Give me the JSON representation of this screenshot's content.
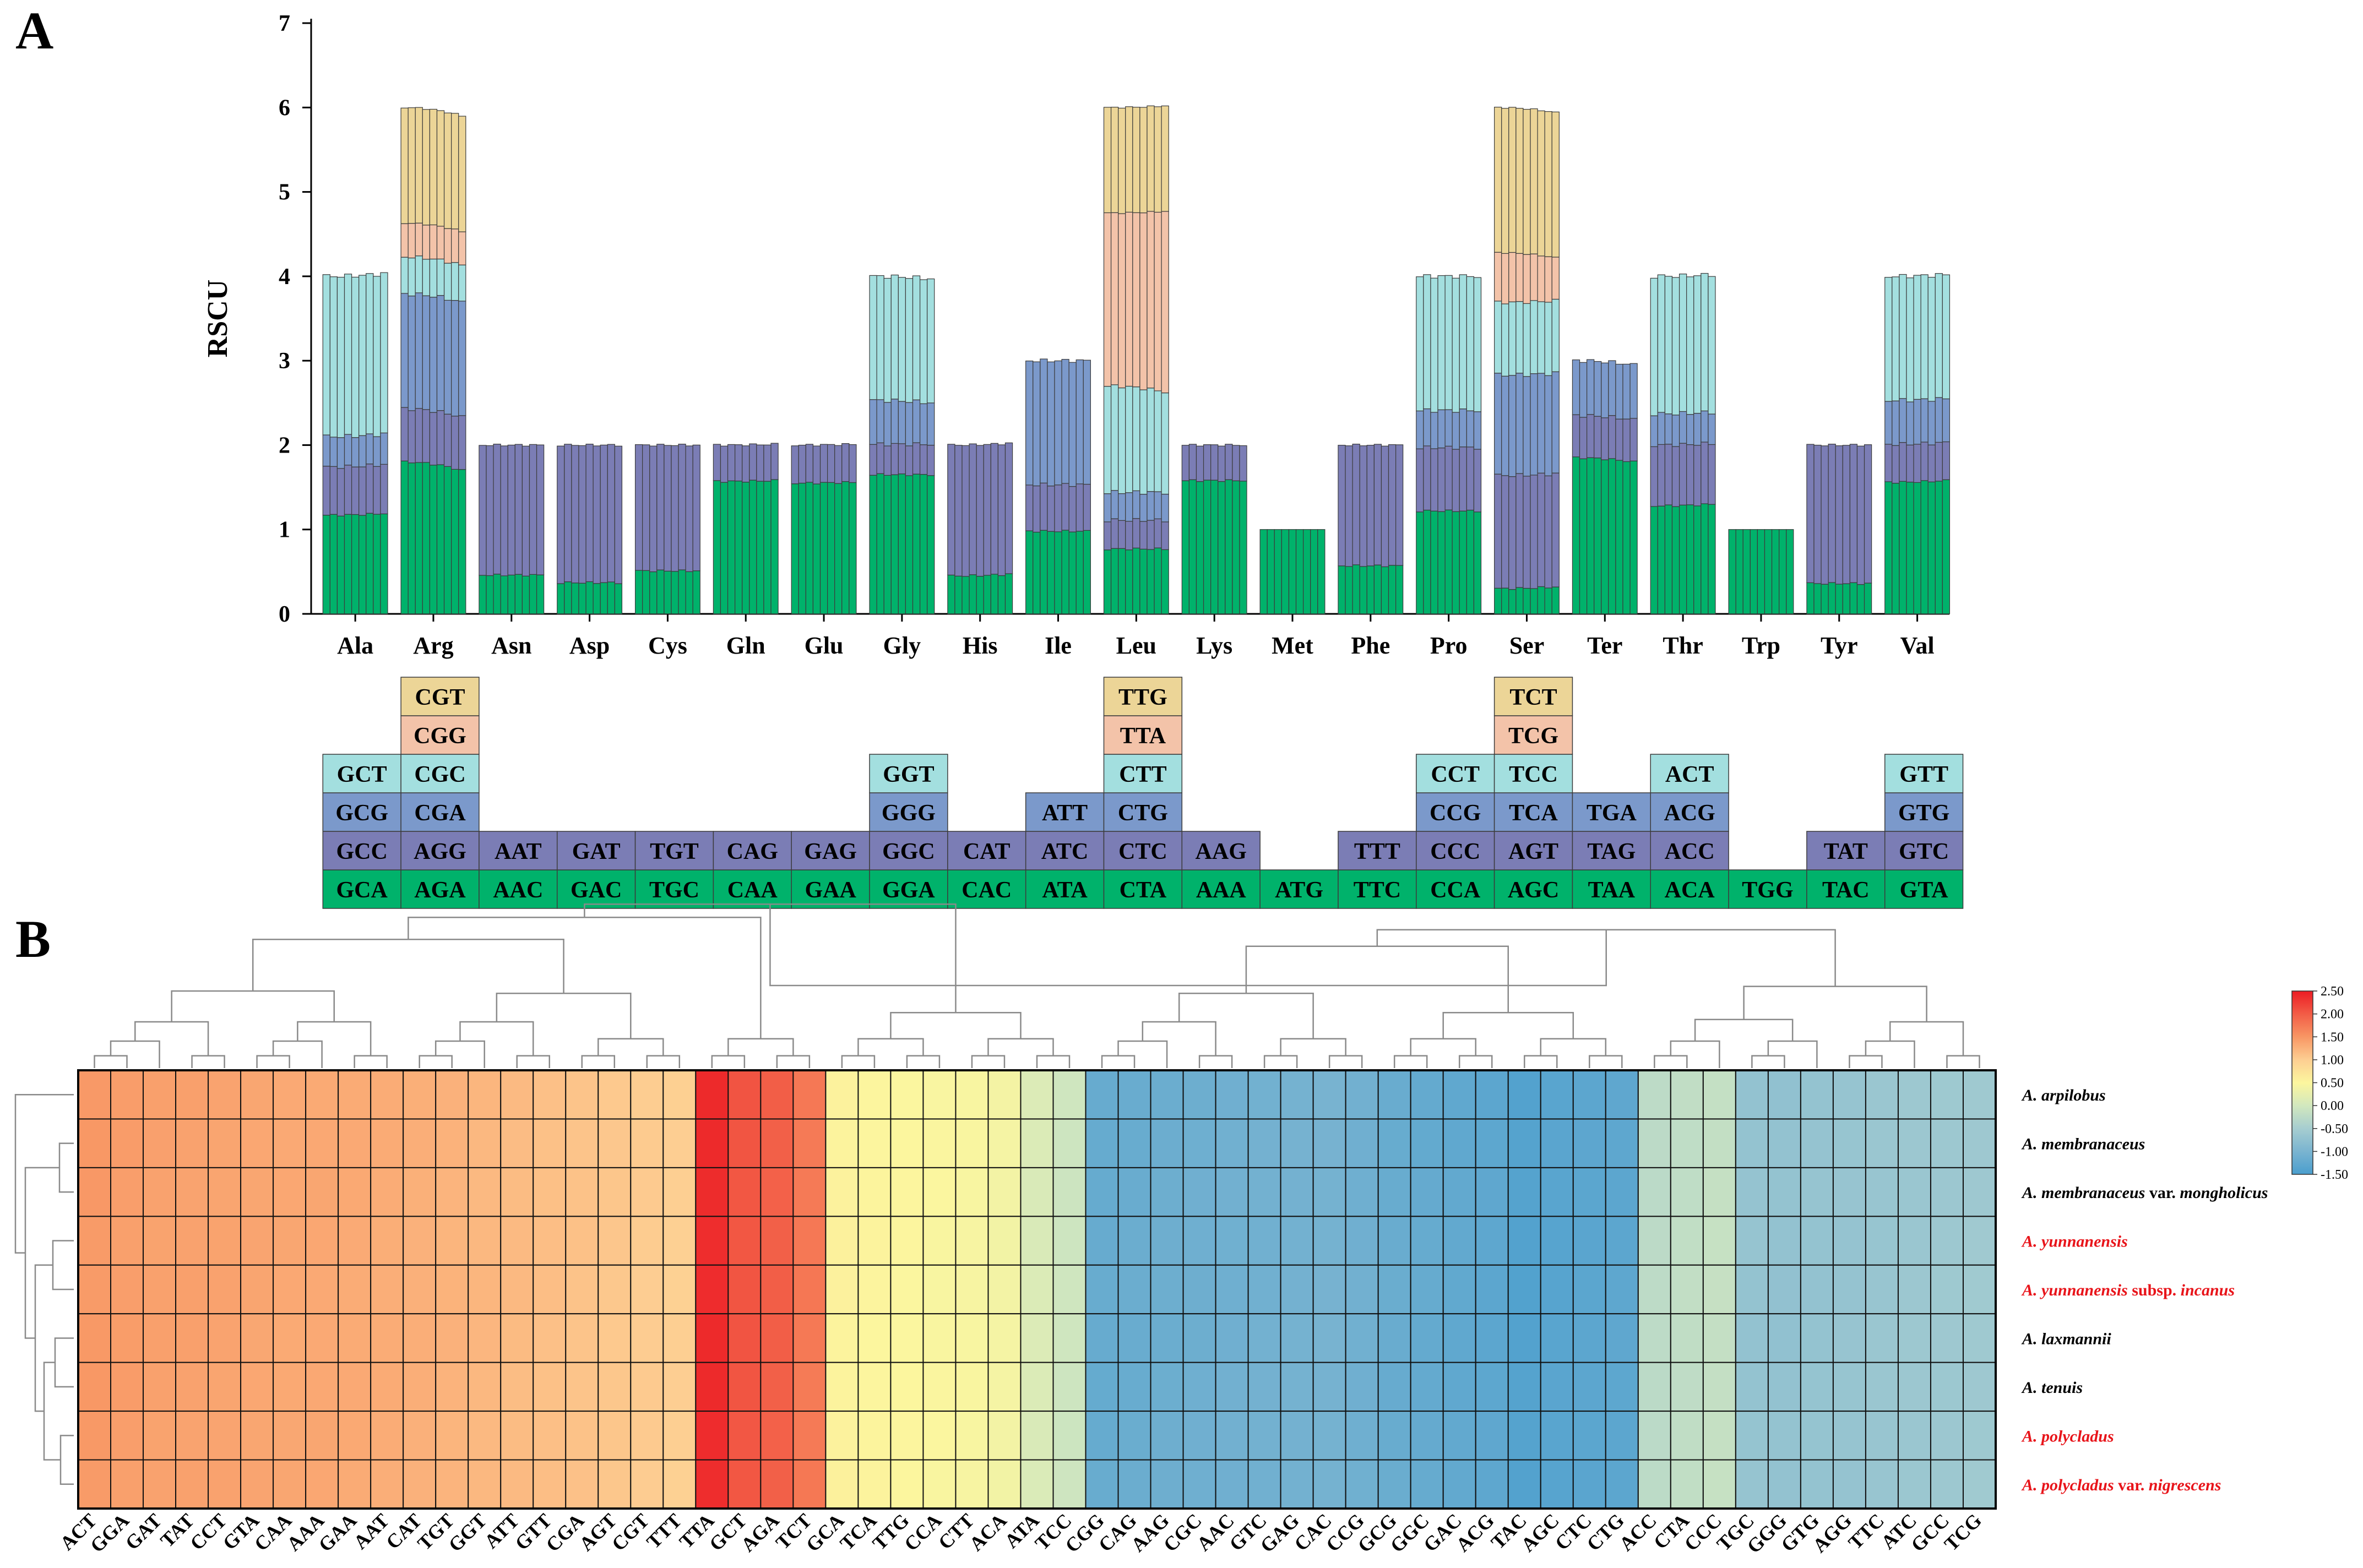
{
  "panel_labels": {
    "a": "A",
    "b": "B"
  },
  "colors": {
    "c1": "#00b26b",
    "c2": "#7b7db5",
    "c3": "#7b99cb",
    "c4": "#a3dfdf",
    "c5": "#f3c3a9",
    "c6": "#ecd597",
    "stroke": "#3c3c3c",
    "highlight_label": "#e8141a"
  },
  "chart_data": [
    {
      "type": "bar",
      "stacked": true,
      "ylabel": "RSCU",
      "ylim": [
        0,
        7
      ],
      "yticks": [
        0,
        1,
        2,
        3,
        4,
        5,
        6,
        7
      ],
      "bars_per_group": 9,
      "amino_acids": [
        {
          "name": "Ala",
          "codons": [
            "GCA",
            "GCC",
            "GCG",
            "GCT"
          ],
          "means": [
            1.17,
            0.57,
            0.36,
            1.9
          ],
          "end": [
            0.02,
            0.01,
            0.0,
            0.0
          ]
        },
        {
          "name": "Arg",
          "codons": [
            "AGA",
            "AGG",
            "CGA",
            "CGC",
            "CGG",
            "CGT"
          ],
          "means": [
            1.8,
            0.63,
            1.36,
            0.44,
            0.4,
            1.37
          ],
          "end": [
            -0.1,
            0.0,
            0.0,
            0.0,
            0.0,
            0.0
          ]
        },
        {
          "name": "Asn",
          "codons": [
            "AAC",
            "AAT"
          ],
          "means": [
            0.46,
            1.54
          ],
          "end": [
            0,
            0
          ]
        },
        {
          "name": "Asp",
          "codons": [
            "GAC",
            "GAT"
          ],
          "means": [
            0.37,
            1.63
          ],
          "end": [
            0,
            0
          ]
        },
        {
          "name": "Cys",
          "codons": [
            "TGC",
            "TGT"
          ],
          "means": [
            0.51,
            1.49
          ],
          "end": [
            0,
            0
          ]
        },
        {
          "name": "Gln",
          "codons": [
            "CAA",
            "CAG"
          ],
          "means": [
            1.57,
            0.43
          ],
          "end": [
            0.01,
            0
          ]
        },
        {
          "name": "Glu",
          "codons": [
            "GAA",
            "GAG"
          ],
          "means": [
            1.55,
            0.45
          ],
          "end": [
            0.01,
            0
          ]
        },
        {
          "name": "Gly",
          "codons": [
            "GGA",
            "GGC",
            "GGG",
            "GGT"
          ],
          "means": [
            1.65,
            0.36,
            0.52,
            1.47
          ],
          "end": [
            0.0,
            0.0,
            -0.03,
            0.0
          ]
        },
        {
          "name": "His",
          "codons": [
            "CAC",
            "CAT"
          ],
          "means": [
            0.45,
            1.55
          ],
          "end": [
            0.02,
            0
          ]
        },
        {
          "name": "Ile",
          "codons": [
            "ATA",
            "ATC",
            "ATT"
          ],
          "means": [
            0.98,
            0.55,
            1.47
          ],
          "end": [
            0,
            0,
            0
          ]
        },
        {
          "name": "Leu",
          "codons": [
            "CTA",
            "CTC",
            "CTG",
            "CTT",
            "TTA",
            "TTG"
          ],
          "means": [
            0.77,
            0.34,
            0.33,
            1.26,
            2.05,
            1.25
          ],
          "end": [
            0.0,
            0.0,
            0.0,
            -0.07,
            0.09,
            0.0
          ]
        },
        {
          "name": "Lys",
          "codons": [
            "AAA",
            "AAG"
          ],
          "means": [
            1.58,
            0.42
          ],
          "end": [
            0,
            0
          ]
        },
        {
          "name": "Met",
          "codons": [
            "ATG"
          ],
          "means": [
            1.0
          ],
          "end": [
            0
          ]
        },
        {
          "name": "Phe",
          "codons": [
            "TTC",
            "TTT"
          ],
          "means": [
            0.57,
            1.43
          ],
          "end": [
            0,
            0
          ]
        },
        {
          "name": "Pro",
          "codons": [
            "CCA",
            "CCC",
            "CCG",
            "CCT"
          ],
          "means": [
            1.22,
            0.75,
            0.44,
            1.59
          ],
          "end": [
            0.0,
            0.0,
            0.0,
            0.0
          ]
        },
        {
          "name": "Ser",
          "codons": [
            "AGC",
            "AGT",
            "TCA",
            "TCC",
            "TCG",
            "TCT"
          ],
          "means": [
            0.3,
            1.34,
            1.19,
            0.86,
            0.59,
            1.72
          ],
          "end": [
            0.02,
            0.0,
            0.0,
            0.0,
            -0.08,
            0.0
          ]
        },
        {
          "name": "Ter",
          "codons": [
            "TAA",
            "TAG",
            "TGA"
          ],
          "means": [
            1.85,
            0.5,
            0.65
          ],
          "end": [
            -0.05,
            0,
            0
          ]
        },
        {
          "name": "Thr",
          "codons": [
            "ACA",
            "ACC",
            "ACG",
            "ACT"
          ],
          "means": [
            1.28,
            0.72,
            0.37,
            1.63
          ],
          "end": [
            0.02,
            0.0,
            0.0,
            0.0
          ]
        },
        {
          "name": "Trp",
          "codons": [
            "TGG"
          ],
          "means": [
            1.0
          ],
          "end": [
            0
          ]
        },
        {
          "name": "Tyr",
          "codons": [
            "TAC",
            "TAT"
          ],
          "means": [
            0.36,
            1.64
          ],
          "end": [
            0,
            0
          ]
        },
        {
          "name": "Val",
          "codons": [
            "GTA",
            "GTC",
            "GTG",
            "GTT"
          ],
          "means": [
            1.56,
            0.45,
            0.52,
            1.47
          ],
          "end": [
            0.02,
            0.0,
            0.0,
            0.0
          ]
        }
      ]
    },
    {
      "type": "heatmap",
      "colorbar_ticks": [
        "2.50",
        "2.00",
        "1.50",
        "1.00",
        "0.50",
        "0.00",
        "-0.50",
        "-1.00",
        "-1.50"
      ],
      "colorbar_range": [
        -1.5,
        2.5
      ],
      "columns": [
        "ACT",
        "GGA",
        "GAT",
        "TAT",
        "CCT",
        "GTA",
        "CAA",
        "AAA",
        "GAA",
        "AAT",
        "CAT",
        "TGT",
        "GGT",
        "ATT",
        "GTT",
        "CGA",
        "AGT",
        "CGT",
        "TTT",
        "TTA",
        "GCT",
        "AGA",
        "TCT",
        "GCA",
        "TCA",
        "TTG",
        "CCA",
        "CTT",
        "ACA",
        "ATA",
        "TCC",
        "CGG",
        "CAG",
        "AAG",
        "CGC",
        "AAC",
        "GTC",
        "GAG",
        "CAC",
        "CCG",
        "GCG",
        "GGC",
        "GAC",
        "ACG",
        "TAC",
        "AGC",
        "CTC",
        "CTG",
        "ACC",
        "CTA",
        "CCC",
        "TGC",
        "GGG",
        "GTG",
        "AGG",
        "TTC",
        "ATC",
        "GCC",
        "TCG"
      ],
      "column_values": [
        1.47,
        1.43,
        1.4,
        1.4,
        1.38,
        1.36,
        1.34,
        1.34,
        1.32,
        1.3,
        1.27,
        1.24,
        1.2,
        1.17,
        1.13,
        1.1,
        1.06,
        1.02,
        0.98,
        2.38,
        2.05,
        1.97,
        1.75,
        0.55,
        0.52,
        0.5,
        0.47,
        0.45,
        0.4,
        0.1,
        -0.05,
        -1.2,
        -1.17,
        -1.14,
        -1.12,
        -1.1,
        -1.08,
        -1.06,
        -1.04,
        -1.1,
        -1.18,
        -1.22,
        -1.26,
        -1.3,
        -1.4,
        -1.35,
        -1.32,
        -1.3,
        -0.25,
        -0.2,
        -0.15,
        -0.7,
        -0.72,
        -0.7,
        -0.68,
        -0.65,
        -0.62,
        -0.6,
        -0.58
      ],
      "rows": [
        {
          "parts": [
            {
              "t": "A. arpilobus",
              "i": true
            }
          ],
          "highlight": false
        },
        {
          "parts": [
            {
              "t": "A. membranaceus",
              "i": true
            }
          ],
          "highlight": false
        },
        {
          "parts": [
            {
              "t": "A. membranaceus",
              "i": true
            },
            {
              "t": " var. ",
              "i": false
            },
            {
              "t": "mongholicus",
              "i": true
            }
          ],
          "highlight": false
        },
        {
          "parts": [
            {
              "t": "A. yunnanensis",
              "i": true
            }
          ],
          "highlight": true
        },
        {
          "parts": [
            {
              "t": "A. yunnanensis",
              "i": true
            },
            {
              "t": " subsp. ",
              "i": false
            },
            {
              "t": "incanus",
              "i": true
            }
          ],
          "highlight": true
        },
        {
          "parts": [
            {
              "t": "A. laxmannii",
              "i": true
            }
          ],
          "highlight": false
        },
        {
          "parts": [
            {
              "t": "A. tenuis",
              "i": true
            }
          ],
          "highlight": false
        },
        {
          "parts": [
            {
              "t": "A. polycladus",
              "i": true
            }
          ],
          "highlight": true
        },
        {
          "parts": [
            {
              "t": "A. polycladus",
              "i": true
            },
            {
              "t": " var. ",
              "i": false
            },
            {
              "t": "nigrescens",
              "i": true
            }
          ],
          "highlight": true
        }
      ]
    }
  ]
}
